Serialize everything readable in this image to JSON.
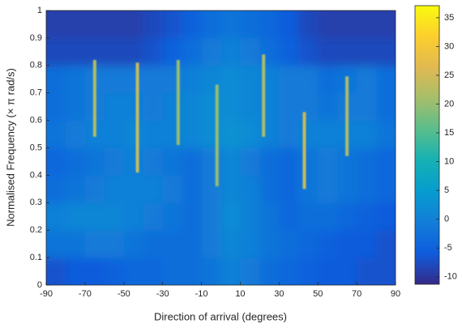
{
  "chart_data": {
    "type": "heatmap",
    "colormap": "parula",
    "xlabel": "Direction of arrival (degrees)",
    "ylabel": "Normalised Frequency (× π rad/s)",
    "xlim": [
      -90,
      90
    ],
    "xticks": [
      -90,
      -70,
      -50,
      -30,
      -10,
      10,
      30,
      50,
      70,
      90
    ],
    "ylim": [
      0,
      1
    ],
    "yticks": [
      0,
      0.1,
      0.2,
      0.3,
      0.4,
      0.5,
      0.6,
      0.7,
      0.8,
      0.9,
      1
    ],
    "clim": [
      -11.3,
      37.1
    ],
    "cticks": [
      -10,
      -5,
      0,
      5,
      10,
      15,
      20,
      25,
      30,
      35
    ],
    "x": [
      -85,
      -75,
      -65,
      -55,
      -45,
      -35,
      -25,
      -15,
      -5,
      5,
      15,
      25,
      35,
      45,
      55,
      65,
      75,
      85
    ],
    "y": [
      0.05,
      0.15,
      0.25,
      0.35,
      0.45,
      0.55,
      0.65,
      0.75,
      0.85,
      0.95
    ],
    "z": [
      [
        -7,
        -6,
        -6,
        -5,
        -4,
        -4,
        -3,
        -3,
        -2,
        0,
        -1,
        -3,
        -4,
        -5,
        -6,
        -6,
        -7,
        -7
      ],
      [
        -2,
        -2,
        -1,
        -1,
        -2,
        -3,
        -3,
        -3,
        -1,
        1,
        0,
        -2,
        -3,
        -4,
        -5,
        -6,
        -6,
        -7
      ],
      [
        0,
        1,
        1,
        1,
        0,
        -1,
        -2,
        -3,
        -1,
        2,
        0,
        -2,
        -4,
        -3,
        -3,
        -4,
        -5,
        -6
      ],
      [
        -3,
        -2,
        -1,
        0,
        0,
        0,
        -1,
        -3,
        -1,
        1,
        0,
        -3,
        -4,
        -2,
        -1,
        -2,
        -3,
        -4
      ],
      [
        -4,
        -3,
        -2,
        -1,
        0,
        -1,
        -2,
        -3,
        -1,
        1,
        -1,
        -3,
        -4,
        -2,
        -1,
        -2,
        -3,
        -4
      ],
      [
        -2,
        -1,
        0,
        0,
        1,
        0,
        0,
        1,
        2,
        3,
        2,
        0,
        -1,
        0,
        0,
        0,
        0,
        -2
      ],
      [
        -3,
        -2,
        -1,
        0,
        0,
        -1,
        0,
        1,
        2,
        2,
        1,
        0,
        -1,
        -1,
        -2,
        -1,
        -1,
        -3
      ],
      [
        -3,
        -2,
        -1,
        -1,
        -1,
        -1,
        -1,
        0,
        1,
        2,
        1,
        0,
        -1,
        -1,
        -3,
        -2,
        -1,
        -3
      ],
      [
        -8,
        -8,
        -8,
        -8,
        -8,
        -7,
        -5,
        -3,
        -1,
        0,
        -1,
        -3,
        -5,
        -7,
        -8,
        -8,
        -8,
        -8
      ],
      [
        -9,
        -9,
        -9,
        -9,
        -9,
        -8,
        -7,
        -5,
        -3,
        -2,
        -3,
        -4,
        -6,
        -8,
        -9,
        -9,
        -9,
        -9
      ]
    ],
    "ridges": [
      {
        "x": -65,
        "y0": 0.54,
        "y1": 0.82,
        "value": 22
      },
      {
        "x": -43,
        "y0": 0.41,
        "y1": 0.81,
        "value": 24
      },
      {
        "x": -22,
        "y0": 0.51,
        "y1": 0.82,
        "value": 20
      },
      {
        "x": -2,
        "y0": 0.36,
        "y1": 0.73,
        "value": 20
      },
      {
        "x": 22,
        "y0": 0.54,
        "y1": 0.84,
        "value": 22
      },
      {
        "x": 43,
        "y0": 0.35,
        "y1": 0.63,
        "value": 24
      },
      {
        "x": 65,
        "y0": 0.47,
        "y1": 0.76,
        "value": 22
      }
    ]
  }
}
